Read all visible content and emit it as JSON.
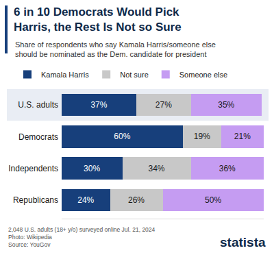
{
  "chart_data": {
    "type": "bar",
    "orientation": "horizontal",
    "stacked": true,
    "title": "6 in 10 Democrats Would Pick Harris, the Rest Is Not so Sure",
    "subtitle": "Share of respondents who say Kamala Harris/someone else should be nominated as the Dem. candidate for president",
    "categories": [
      "U.S. adults",
      "Democrats",
      "Independents",
      "Republicans"
    ],
    "series": [
      {
        "name": "Kamala Harris",
        "color": "#173f7b",
        "values": [
          37,
          60,
          30,
          24
        ],
        "value_labels": [
          "37%",
          "60%",
          "30%",
          "24%"
        ]
      },
      {
        "name": "Not sure",
        "color": "#c8c8c8",
        "values": [
          27,
          19,
          34,
          26
        ],
        "value_labels": [
          "27%",
          "19%",
          "34%",
          "26%"
        ]
      },
      {
        "name": "Someone else",
        "color": "#c59cf2",
        "values": [
          35,
          21,
          36,
          50
        ],
        "value_labels": [
          "35%",
          "21%",
          "36%",
          "50%"
        ]
      }
    ],
    "xlim": [
      0,
      100
    ],
    "data_labels": true,
    "tick_labels": "y",
    "grid": false,
    "legend": "top-left",
    "annotations": [
      "2,048 U.S. adults (18+ y/o) surveyed online Jul. 21, 2024",
      "Photo: Wikipedia",
      "Source: YouGov"
    ],
    "logo": "statista"
  }
}
